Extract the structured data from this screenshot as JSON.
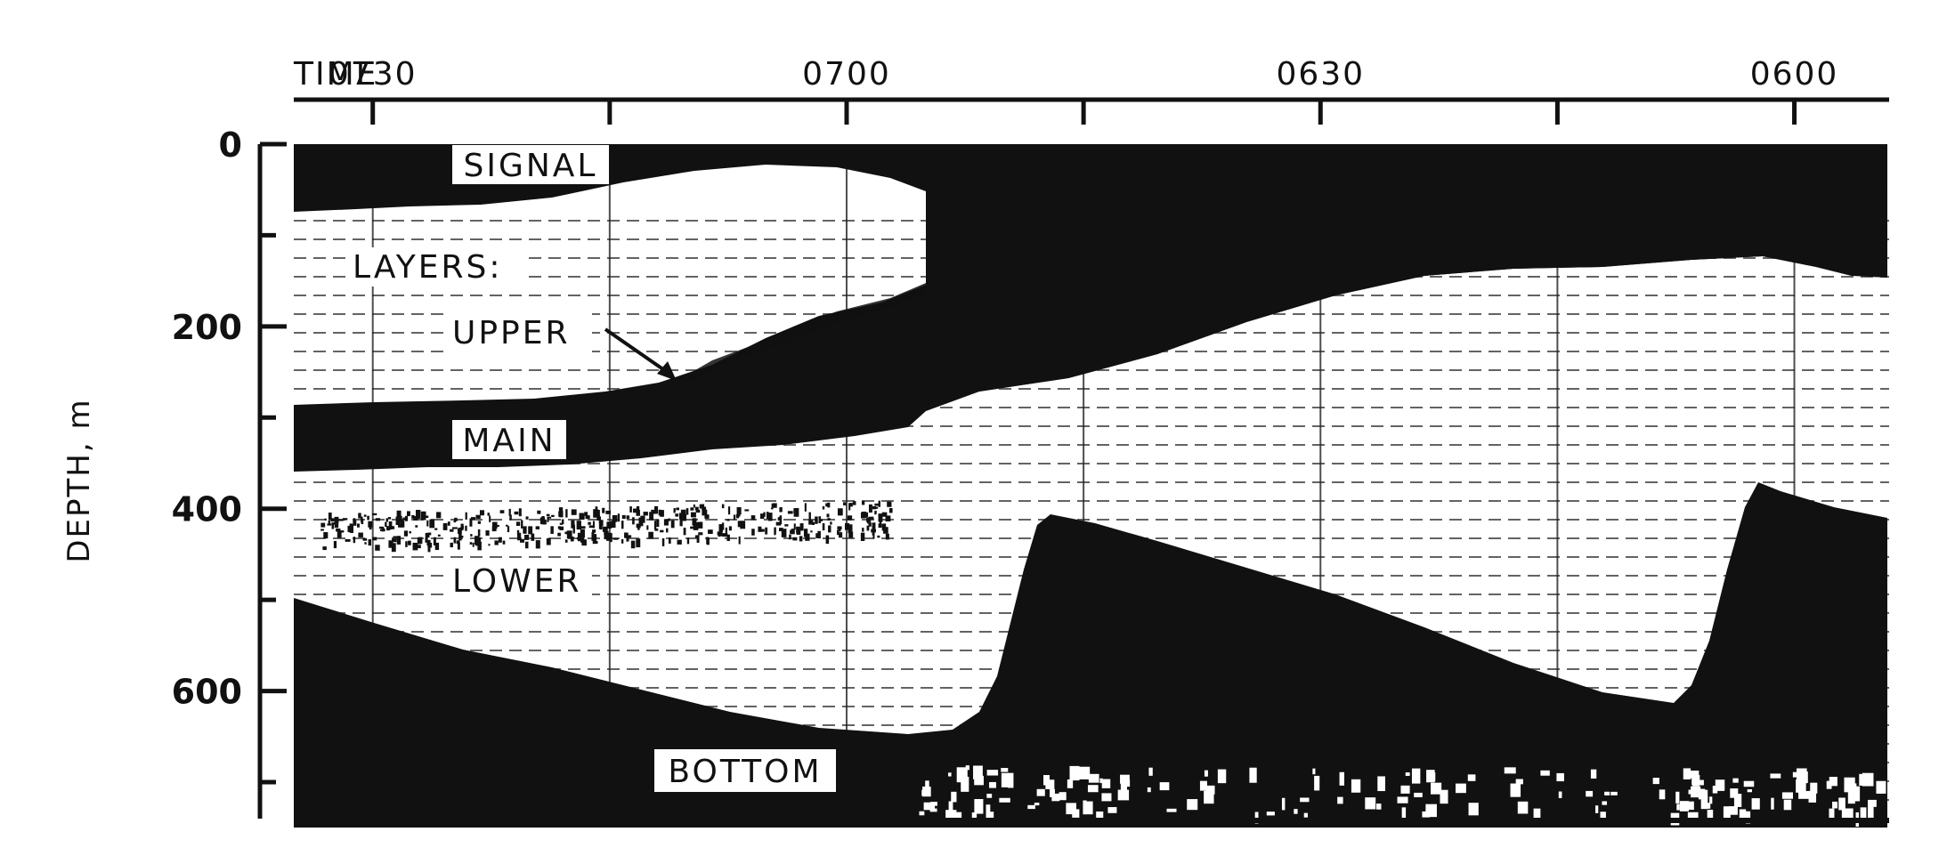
{
  "time_axis": {
    "title": "TIME",
    "ticks": [
      {
        "label": "0730",
        "minutes": 450
      },
      {
        "label": "0700",
        "minutes": 420
      },
      {
        "label": "0630",
        "minutes": 390
      },
      {
        "label": "0600",
        "minutes": 360
      }
    ],
    "range": [
      455,
      354
    ]
  },
  "depth_axis": {
    "label": "DEPTH, m",
    "ticks": [
      {
        "label": "0",
        "value": 0
      },
      {
        "label": "200",
        "value": 200
      },
      {
        "label": "400",
        "value": 400
      },
      {
        "label": "600",
        "value": 600
      }
    ],
    "range": [
      0,
      740
    ]
  },
  "labels": {
    "signal": "SIGNAL",
    "layers": "LAYERS:",
    "upper": "UPPER",
    "main": "MAIN",
    "lower": "LOWER",
    "bottom": "BOTTOM"
  },
  "colors": {
    "ink": "#111111",
    "paper": "#ffffff"
  }
}
